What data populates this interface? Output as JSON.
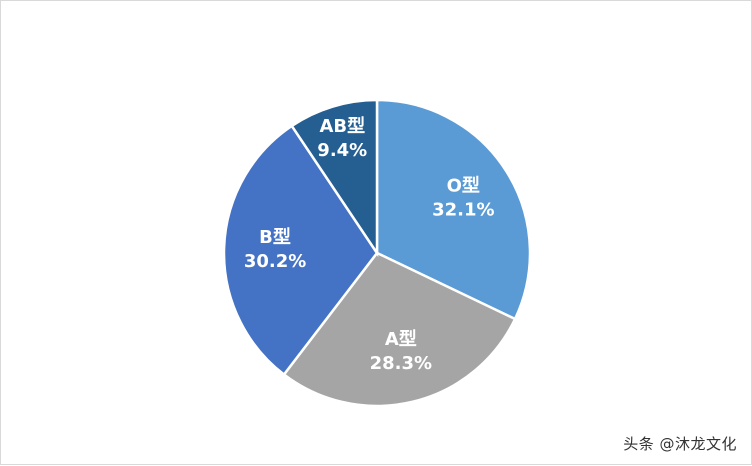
{
  "chart_data": {
    "type": "pie",
    "title": "",
    "categories": [
      "O型",
      "A型",
      "B型",
      "AB型"
    ],
    "values": [
      32.1,
      28.3,
      30.2,
      9.4
    ],
    "value_labels": [
      "32.1%",
      "28.3%",
      "30.2%",
      "9.4%"
    ],
    "start": "12 o'clock",
    "direction": "clockwise",
    "colors": [
      "#5b9bd5",
      "#a5a5a5",
      "#4472c4",
      "#255e91"
    ],
    "legend": "none",
    "label_placement": "inside"
  },
  "watermark": "头条 @沐龙文化"
}
